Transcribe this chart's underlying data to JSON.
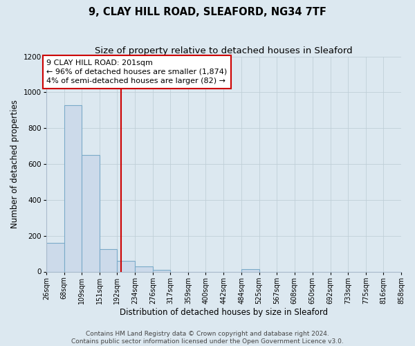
{
  "title": "9, CLAY HILL ROAD, SLEAFORD, NG34 7TF",
  "subtitle": "Size of property relative to detached houses in Sleaford",
  "xlabel": "Distribution of detached houses by size in Sleaford",
  "ylabel": "Number of detached properties",
  "bar_lefts": [
    26,
    68,
    109,
    151,
    192,
    234,
    276,
    317,
    359,
    400,
    442,
    484,
    525,
    567,
    608,
    650,
    692,
    733,
    775,
    816
  ],
  "bar_rights": [
    68,
    109,
    151,
    192,
    234,
    276,
    317,
    359,
    400,
    442,
    484,
    525,
    567,
    608,
    650,
    692,
    733,
    775,
    816,
    858
  ],
  "bar_heights": [
    160,
    930,
    650,
    125,
    60,
    28,
    10,
    0,
    0,
    0,
    0,
    15,
    0,
    0,
    0,
    0,
    0,
    0,
    0,
    0
  ],
  "bar_color": "#ccdaea",
  "bar_edge_color": "#7aaac8",
  "property_line_x": 201,
  "property_line_color": "#cc0000",
  "annotation_line1": "9 CLAY HILL ROAD: 201sqm",
  "annotation_line2": "← 96% of detached houses are smaller (1,874)",
  "annotation_line3": "4% of semi-detached houses are larger (82) →",
  "annotation_box_edge_color": "#cc0000",
  "annotation_text_color": "#000000",
  "ylim": [
    0,
    1200
  ],
  "yticks": [
    0,
    200,
    400,
    600,
    800,
    1000,
    1200
  ],
  "xlim_left": 26,
  "xlim_right": 858,
  "tick_labels": [
    "26sqm",
    "68sqm",
    "109sqm",
    "151sqm",
    "192sqm",
    "234sqm",
    "276sqm",
    "317sqm",
    "359sqm",
    "400sqm",
    "442sqm",
    "484sqm",
    "525sqm",
    "567sqm",
    "608sqm",
    "650sqm",
    "692sqm",
    "733sqm",
    "775sqm",
    "816sqm",
    "858sqm"
  ],
  "tick_positions": [
    26,
    68,
    109,
    151,
    192,
    234,
    276,
    317,
    359,
    400,
    442,
    484,
    525,
    567,
    608,
    650,
    692,
    733,
    775,
    816,
    858
  ],
  "footer_line1": "Contains HM Land Registry data © Crown copyright and database right 2024.",
  "footer_line2": "Contains public sector information licensed under the Open Government Licence v3.0.",
  "background_color": "#dce8f0",
  "plot_background_color": "#dce8f0",
  "grid_color": "#c0cfd8",
  "title_fontsize": 10.5,
  "subtitle_fontsize": 9.5,
  "axis_label_fontsize": 8.5,
  "tick_fontsize": 7,
  "footer_fontsize": 6.5,
  "annotation_fontsize": 8
}
